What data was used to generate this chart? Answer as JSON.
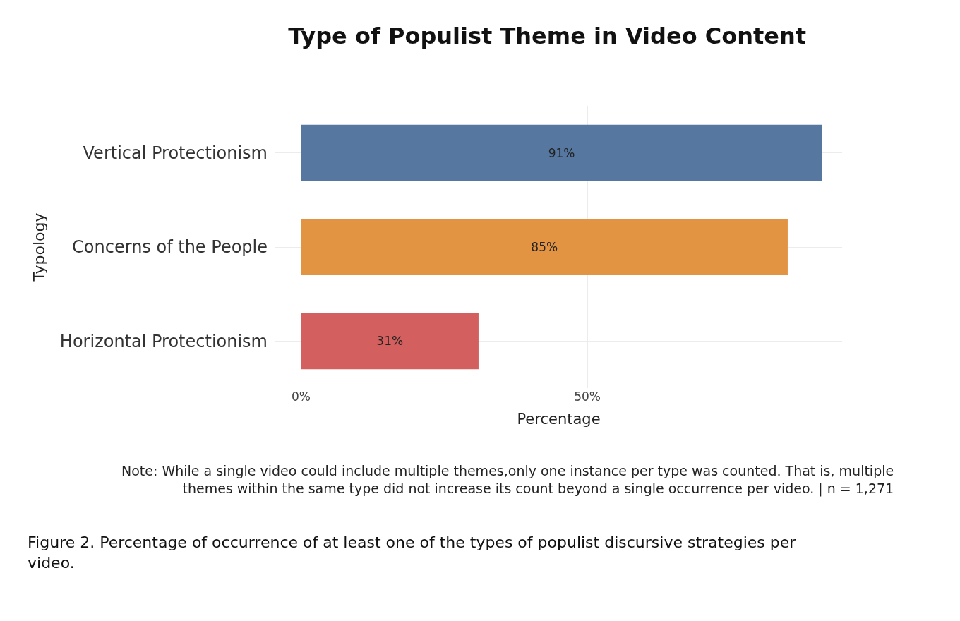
{
  "chart_data": {
    "type": "bar",
    "orientation": "horizontal",
    "title": "Type of Populist Theme in Video Content",
    "categories": [
      "Vertical Protectionism",
      "Concerns of the People",
      "Horizontal Protectionism"
    ],
    "values": [
      91,
      85,
      31
    ],
    "colors": [
      "#5577a0",
      "#e39442",
      "#d35f5f"
    ],
    "value_labels": [
      "91%",
      "85%",
      "31%"
    ],
    "xlabel": "Percentage",
    "ylabel": "Typology",
    "xlim": [
      -4.5,
      94.5
    ],
    "xticks": [
      {
        "value": 0,
        "label": "0%"
      },
      {
        "value": 50,
        "label": "50%"
      }
    ],
    "grid": true,
    "legend": false,
    "annotations": [
      "Note: While a single video could include multiple themes,only one instance per type was counted. That is, multiple\nthemes within the same type did not increase its count beyond a single occurrence per video. | n = 1,271",
      "Figure 2. Percentage of occurrence of at least one of the types of populist discursive strategies per\nvideo."
    ]
  }
}
